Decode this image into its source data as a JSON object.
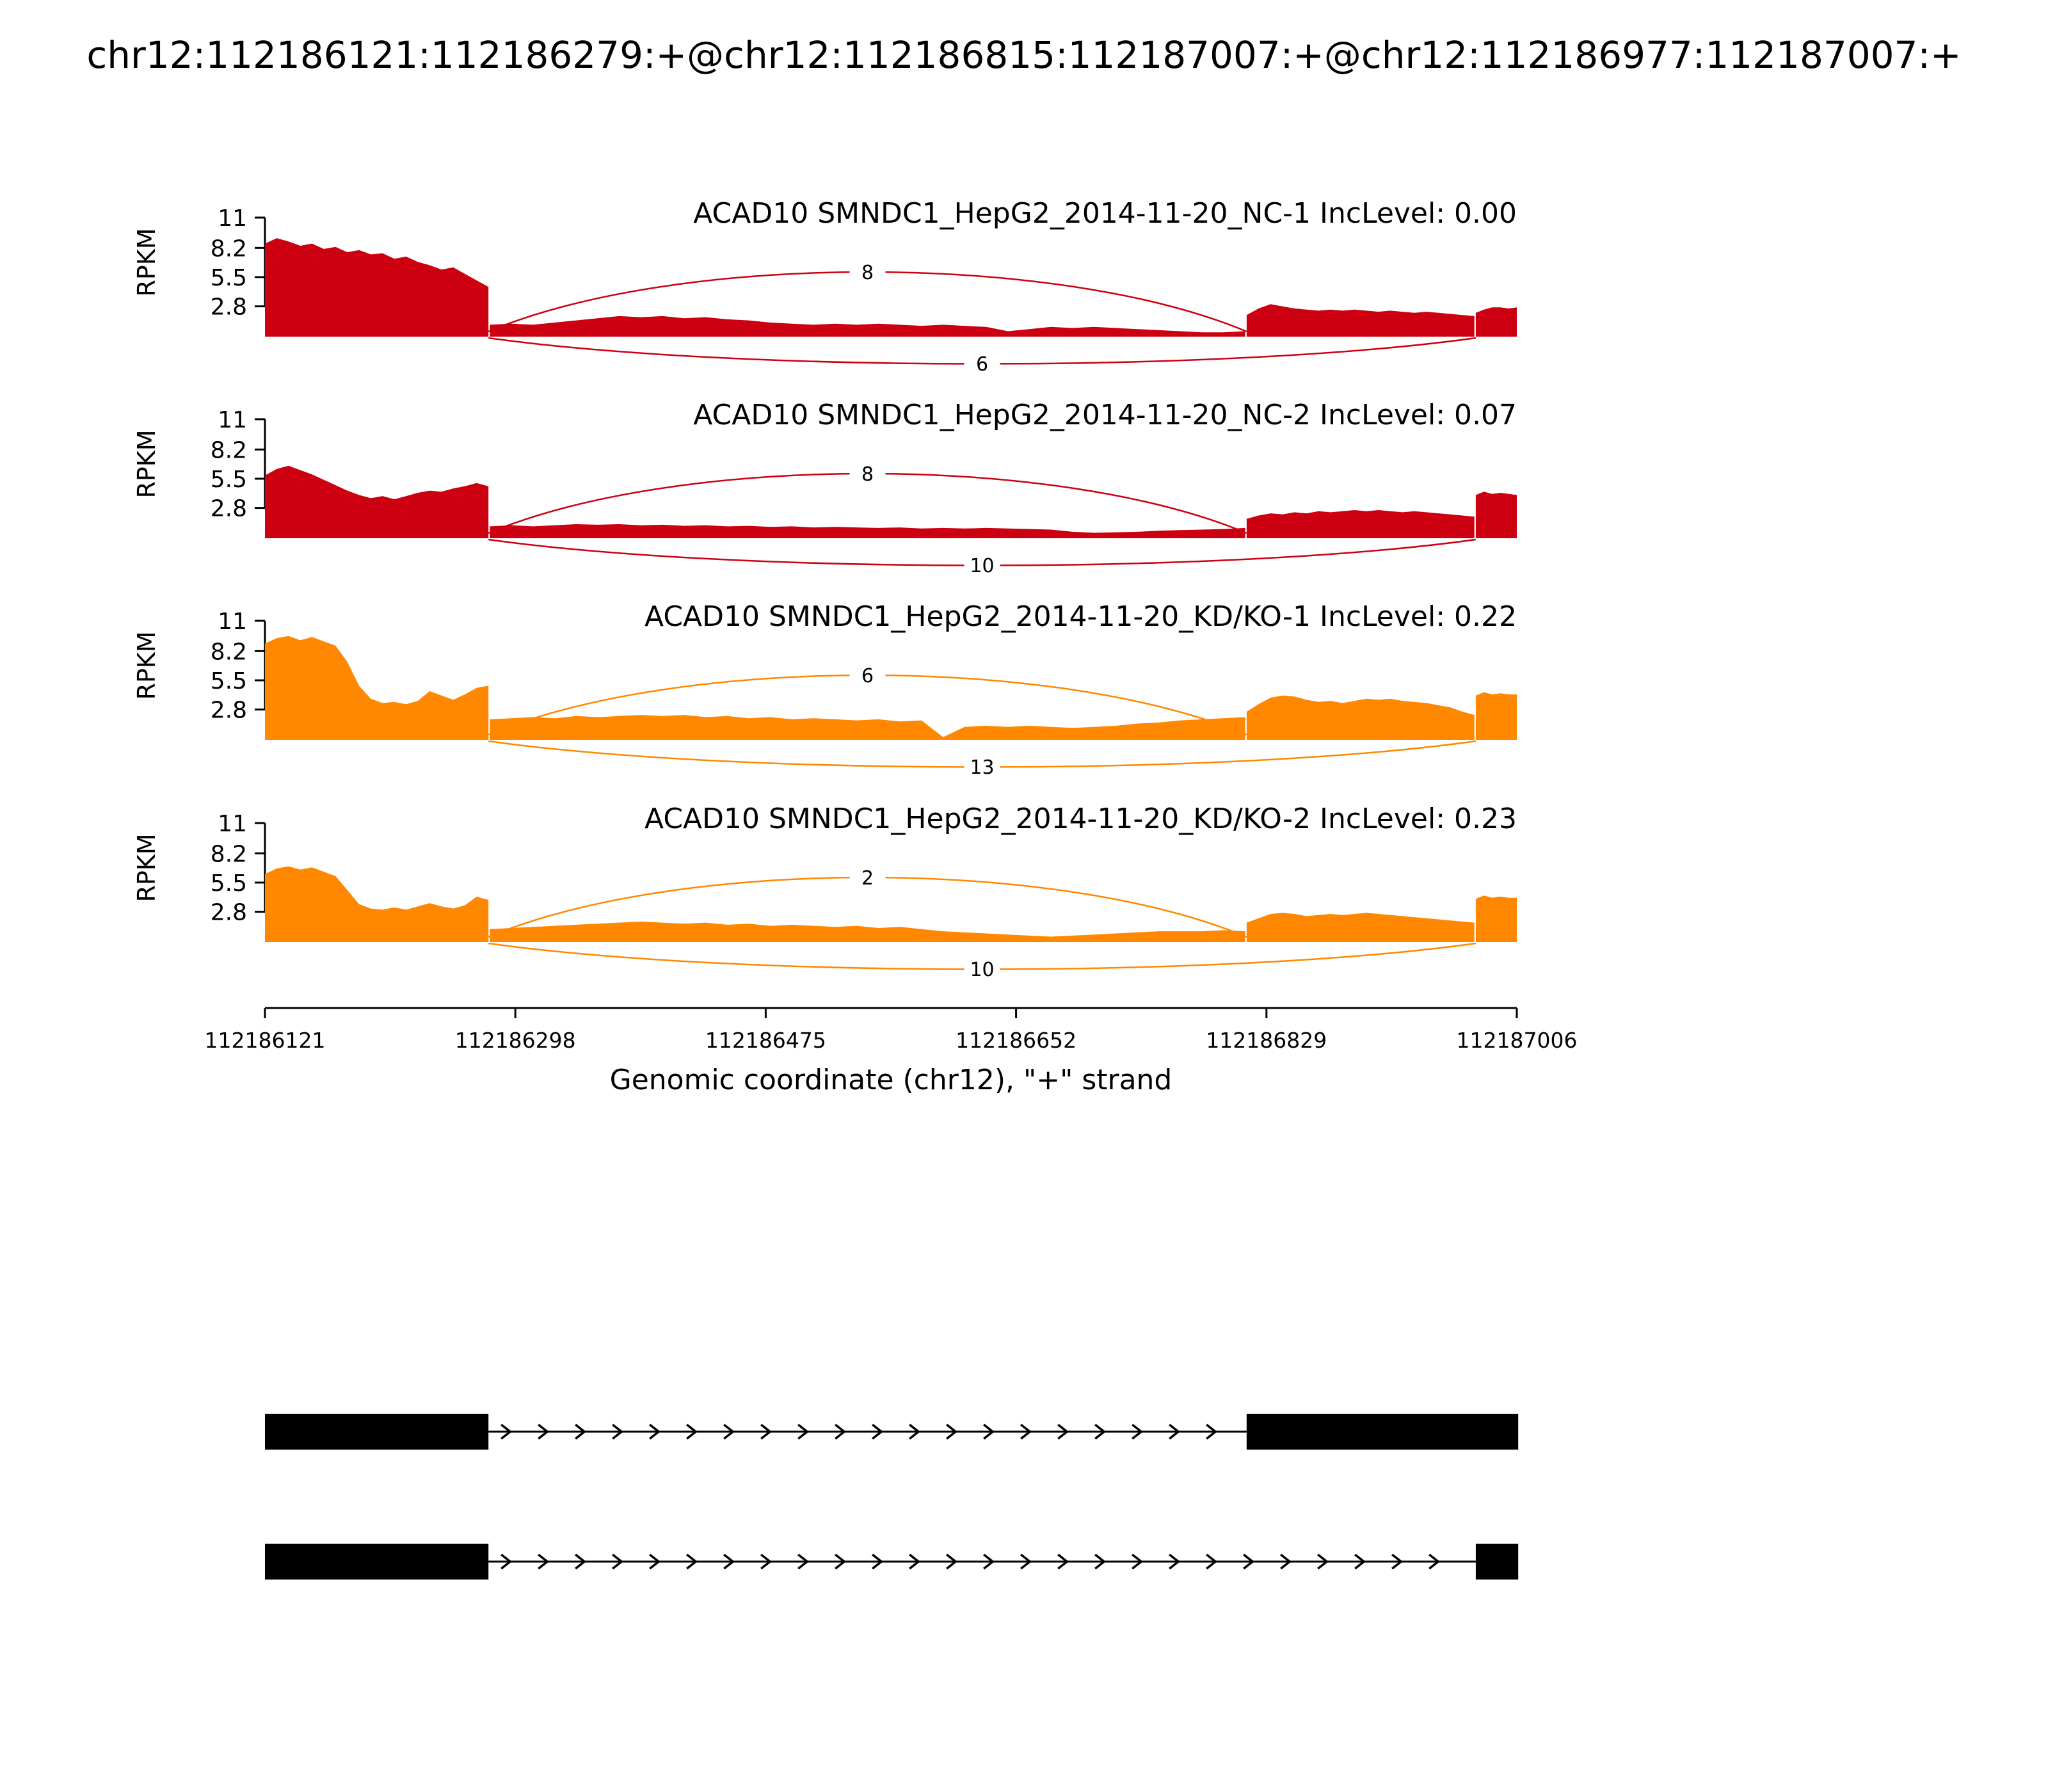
{
  "chart_data": {
    "type": "area",
    "subtype": "sashimi-rnaseq-coverage",
    "title": "chr12:112186121:112186279:+@chr12:112186815:112187007:+@chr12:112186977:112187007:+",
    "xlabel": "Genomic coordinate (chr12), \"+\" strand",
    "ylabel": "RPKM",
    "ylim": [
      0,
      11
    ],
    "xlim": [
      112186121,
      112187006
    ],
    "y_ticks": [
      11,
      8.2,
      5.5,
      2.8
    ],
    "x_ticks": [
      112186121,
      112186298,
      112186475,
      112186652,
      112186829,
      112187006
    ],
    "grid": false,
    "exon_color": "#000000",
    "tracks": [
      {
        "label": "ACAD10 SMNDC1_HepG2_2014-11-20_NC-1 IncLevel: 0.00",
        "color": "#CC0011",
        "coverage": [
          {
            "start": 112186121,
            "end": 112186279,
            "values": [
              8.6,
              9.1,
              8.8,
              8.4,
              8.6,
              8.1,
              8.3,
              7.8,
              8.0,
              7.6,
              7.7,
              7.2,
              7.4,
              6.9,
              6.6,
              6.2,
              6.4,
              5.8,
              5.2,
              4.6
            ]
          },
          {
            "start": 112186280,
            "end": 112186814,
            "values": [
              1.1,
              1.2,
              1.1,
              1.3,
              1.5,
              1.7,
              1.9,
              1.8,
              1.9,
              1.7,
              1.8,
              1.6,
              1.5,
              1.3,
              1.2,
              1.1,
              1.2,
              1.1,
              1.2,
              1.1,
              1.0,
              1.1,
              1.0,
              0.9,
              0.5,
              0.7,
              0.9,
              0.8,
              0.9,
              0.8,
              0.7,
              0.6,
              0.5,
              0.4,
              0.4,
              0.5
            ]
          },
          {
            "start": 112186815,
            "end": 112186976,
            "values": [
              2.0,
              2.6,
              3.0,
              2.8,
              2.6,
              2.5,
              2.4,
              2.5,
              2.4,
              2.5,
              2.4,
              2.3,
              2.4,
              2.3,
              2.2,
              2.3,
              2.2,
              2.1,
              2.0,
              1.9
            ]
          },
          {
            "start": 112186977,
            "end": 112187006,
            "values": [
              2.2,
              2.5,
              2.7,
              2.7,
              2.6,
              2.7
            ]
          }
        ],
        "junctions": [
          {
            "from": 112186279,
            "to": 112186815,
            "count": 8,
            "side": "above"
          },
          {
            "from": 112186279,
            "to": 112186977,
            "count": 6,
            "side": "below"
          }
        ]
      },
      {
        "label": "ACAD10 SMNDC1_HepG2_2014-11-20_NC-2 IncLevel: 0.07",
        "color": "#CC0011",
        "coverage": [
          {
            "start": 112186121,
            "end": 112186279,
            "values": [
              5.8,
              6.4,
              6.7,
              6.3,
              5.9,
              5.4,
              4.9,
              4.4,
              4.0,
              3.7,
              3.9,
              3.6,
              3.9,
              4.2,
              4.4,
              4.3,
              4.6,
              4.8,
              5.1,
              4.8
            ]
          },
          {
            "start": 112186280,
            "end": 112186814,
            "values": [
              1.1,
              1.2,
              1.1,
              1.2,
              1.3,
              1.25,
              1.3,
              1.2,
              1.25,
              1.15,
              1.2,
              1.1,
              1.15,
              1.05,
              1.1,
              1.0,
              1.05,
              1.0,
              0.95,
              1.0,
              0.9,
              0.95,
              0.9,
              0.95,
              0.9,
              0.85,
              0.8,
              0.6,
              0.5,
              0.55,
              0.6,
              0.7,
              0.75,
              0.8,
              0.85,
              0.95
            ]
          },
          {
            "start": 112186815,
            "end": 112186976,
            "values": [
              1.8,
              2.1,
              2.3,
              2.2,
              2.4,
              2.3,
              2.5,
              2.4,
              2.5,
              2.6,
              2.5,
              2.6,
              2.5,
              2.4,
              2.5,
              2.4,
              2.3,
              2.2,
              2.1,
              2.0
            ]
          },
          {
            "start": 112186977,
            "end": 112187006,
            "values": [
              4.0,
              4.3,
              4.1,
              4.2,
              4.1,
              4.0
            ]
          }
        ],
        "junctions": [
          {
            "from": 112186279,
            "to": 112186815,
            "count": 8,
            "side": "above"
          },
          {
            "from": 112186279,
            "to": 112186977,
            "count": 10,
            "side": "below"
          }
        ]
      },
      {
        "label": "ACAD10 SMNDC1_HepG2_2014-11-20_KD/KO-1 IncLevel: 0.22",
        "color": "#FF8800",
        "coverage": [
          {
            "start": 112186121,
            "end": 112186279,
            "values": [
              8.9,
              9.4,
              9.6,
              9.2,
              9.5,
              9.1,
              8.7,
              7.2,
              5.0,
              3.8,
              3.4,
              3.5,
              3.3,
              3.6,
              4.5,
              4.1,
              3.7,
              4.2,
              4.8,
              5.0
            ]
          },
          {
            "start": 112186280,
            "end": 112186814,
            "values": [
              1.9,
              2.0,
              2.1,
              2.0,
              2.2,
              2.1,
              2.2,
              2.3,
              2.2,
              2.3,
              2.1,
              2.2,
              2.0,
              2.1,
              1.9,
              2.0,
              1.9,
              1.8,
              1.9,
              1.7,
              1.8,
              0.25,
              1.2,
              1.3,
              1.2,
              1.3,
              1.2,
              1.1,
              1.2,
              1.3,
              1.5,
              1.6,
              1.8,
              1.9,
              2.0,
              2.1
            ]
          },
          {
            "start": 112186815,
            "end": 112186976,
            "values": [
              2.6,
              3.3,
              3.9,
              4.1,
              4.0,
              3.7,
              3.5,
              3.6,
              3.4,
              3.6,
              3.8,
              3.7,
              3.8,
              3.6,
              3.5,
              3.4,
              3.2,
              3.0,
              2.6,
              2.3
            ]
          },
          {
            "start": 112186977,
            "end": 112187006,
            "values": [
              4.1,
              4.4,
              4.2,
              4.3,
              4.2,
              4.2
            ]
          }
        ],
        "junctions": [
          {
            "from": 112186279,
            "to": 112186815,
            "count": 6,
            "side": "above"
          },
          {
            "from": 112186279,
            "to": 112186977,
            "count": 13,
            "side": "below"
          }
        ]
      },
      {
        "label": "ACAD10 SMNDC1_HepG2_2014-11-20_KD/KO-2 IncLevel: 0.23",
        "color": "#FF8800",
        "coverage": [
          {
            "start": 112186121,
            "end": 112186279,
            "values": [
              6.3,
              6.8,
              7.0,
              6.7,
              6.9,
              6.5,
              6.1,
              4.8,
              3.5,
              3.1,
              3.0,
              3.2,
              3.0,
              3.3,
              3.6,
              3.3,
              3.1,
              3.4,
              4.2,
              3.9
            ]
          },
          {
            "start": 112186280,
            "end": 112186814,
            "values": [
              1.2,
              1.3,
              1.4,
              1.5,
              1.6,
              1.7,
              1.8,
              1.9,
              1.8,
              1.7,
              1.8,
              1.6,
              1.7,
              1.5,
              1.6,
              1.5,
              1.4,
              1.5,
              1.3,
              1.4,
              1.2,
              1.0,
              0.9,
              0.8,
              0.7,
              0.6,
              0.5,
              0.6,
              0.7,
              0.8,
              0.9,
              1.0,
              1.0,
              1.0,
              1.1,
              1.0
            ]
          },
          {
            "start": 112186815,
            "end": 112186976,
            "values": [
              1.8,
              2.2,
              2.6,
              2.7,
              2.6,
              2.4,
              2.5,
              2.6,
              2.5,
              2.6,
              2.7,
              2.6,
              2.5,
              2.4,
              2.3,
              2.2,
              2.1,
              2.0,
              1.9,
              1.8
            ]
          },
          {
            "start": 112186977,
            "end": 112187006,
            "values": [
              4.0,
              4.3,
              4.1,
              4.2,
              4.1,
              4.1
            ]
          }
        ],
        "junctions": [
          {
            "from": 112186279,
            "to": 112186815,
            "count": 2,
            "side": "above"
          },
          {
            "from": 112186279,
            "to": 112186977,
            "count": 10,
            "side": "below"
          }
        ]
      }
    ],
    "transcripts": [
      {
        "exons": [
          [
            112186121,
            112186279
          ],
          [
            112186815,
            112187007
          ]
        ],
        "strand": "+"
      },
      {
        "exons": [
          [
            112186121,
            112186279
          ],
          [
            112186977,
            112187007
          ]
        ],
        "strand": "+"
      }
    ]
  }
}
